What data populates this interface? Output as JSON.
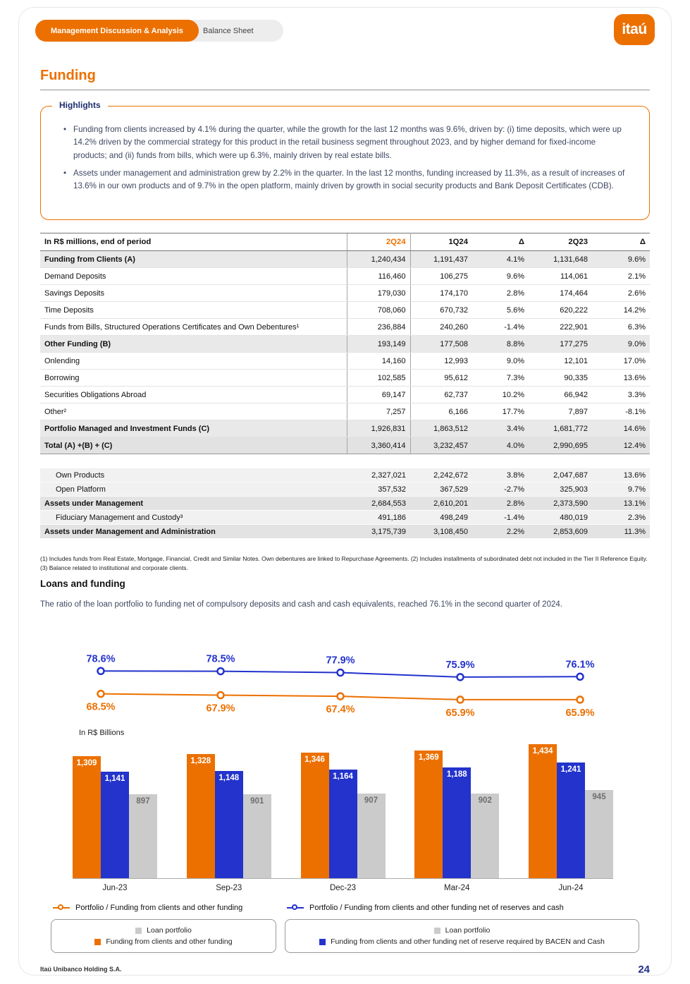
{
  "header": {
    "tab_active": "Management Discussion & Analysis",
    "tab_inactive": "Balance Sheet",
    "logo_text": "itaú"
  },
  "title": "Funding",
  "highlights": {
    "label": "Highlights",
    "bullets": [
      "Funding from clients increased by 4.1% during the quarter, while the growth for the last 12 months was 9.6%, driven by: (i) time deposits, which were up 14.2% driven by the commercial strategy for this product in the retail business segment throughout 2023, and by higher demand for fixed-income products; and (ii) funds from bills, which were up 6.3%, mainly driven by real estate bills.",
      "Assets under management and administration grew by 2.2% in the quarter. In the last 12 months, funding increased by 11.3%, as a result of increases of 13.6% in our own products and of 9.7% in the open platform, mainly driven by growth in social security products and Bank Deposit Certificates (CDB)."
    ]
  },
  "table": {
    "col_headers": [
      "In R$ millions, end of period",
      "2Q24",
      "1Q24",
      "Δ",
      "2Q23",
      "Δ"
    ],
    "rows": [
      {
        "label": "Funding from Clients (A)",
        "values": [
          "1,240,434",
          "1,191,437",
          "4.1%",
          "1,131,648",
          "9.6%"
        ],
        "style": "section"
      },
      {
        "label": "Demand Deposits",
        "values": [
          "116,460",
          "106,275",
          "9.6%",
          "114,061",
          "2.1%"
        ],
        "style": "plain"
      },
      {
        "label": "Savings Deposits",
        "values": [
          "179,030",
          "174,170",
          "2.8%",
          "174,464",
          "2.6%"
        ],
        "style": "plain"
      },
      {
        "label": "Time Deposits",
        "values": [
          "708,060",
          "670,732",
          "5.6%",
          "620,222",
          "14.2%"
        ],
        "style": "plain"
      },
      {
        "label": "Funds from Bills, Structured Operations Certificates and Own Debentures¹",
        "values": [
          "236,884",
          "240,260",
          "-1.4%",
          "222,901",
          "6.3%"
        ],
        "style": "plain"
      },
      {
        "label": "Other Funding (B)",
        "values": [
          "193,149",
          "177,508",
          "8.8%",
          "177,275",
          "9.0%"
        ],
        "style": "section"
      },
      {
        "label": "Onlending",
        "values": [
          "14,160",
          "12,993",
          "9.0%",
          "12,101",
          "17.0%"
        ],
        "style": "plain"
      },
      {
        "label": "Borrowing",
        "values": [
          "102,585",
          "95,612",
          "7.3%",
          "90,335",
          "13.6%"
        ],
        "style": "plain"
      },
      {
        "label": "Securities Obligations Abroad",
        "values": [
          "69,147",
          "62,737",
          "10.2%",
          "66,942",
          "3.3%"
        ],
        "style": "plain"
      },
      {
        "label": "Other²",
        "values": [
          "7,257",
          "6,166",
          "17.7%",
          "7,897",
          "-8.1%"
        ],
        "style": "plain"
      },
      {
        "label": "Portfolio Managed and Investment Funds (C)",
        "values": [
          "1,926,831",
          "1,863,512",
          "3.4%",
          "1,681,772",
          "14.6%"
        ],
        "style": "section"
      },
      {
        "label": "Total (A) +(B) + (C)",
        "values": [
          "3,360,414",
          "3,232,457",
          "4.0%",
          "2,990,695",
          "12.4%"
        ],
        "style": "total"
      }
    ],
    "rows2": [
      {
        "label": "Own Products",
        "values": [
          "2,327,021",
          "2,242,672",
          "3.8%",
          "2,047,687",
          "13.6%"
        ],
        "style": "sub"
      },
      {
        "label": "Open Platform",
        "values": [
          "357,532",
          "367,529",
          "-2.7%",
          "325,903",
          "9.7%"
        ],
        "style": "sub"
      },
      {
        "label": "Assets under Management",
        "values": [
          "2,684,553",
          "2,610,201",
          "2.8%",
          "2,373,590",
          "13.1%"
        ],
        "style": "section2"
      },
      {
        "label": "Fiduciary Management and Custody³",
        "values": [
          "491,186",
          "498,249",
          "-1.4%",
          "480,019",
          "2.3%"
        ],
        "style": "sub"
      },
      {
        "label": "Assets under Management and Administration",
        "values": [
          "3,175,739",
          "3,108,450",
          "2.2%",
          "2,853,609",
          "11.3%"
        ],
        "style": "section2"
      }
    ]
  },
  "footnotes": "(1) Includes funds from Real Estate, Mortgage, Financial, Credit and Similar Notes. Own debentures are linked to Repurchase Agreements. (2) Includes installments of subordinated debt not included in the Tier II Reference Equity. (3) Balance related to institutional and corporate clients.",
  "loans": {
    "heading": "Loans and funding",
    "paragraph": "The ratio of the loan portfolio to funding net of compulsory deposits and cash and cash equivalents, reached 76.1% in the second quarter of 2024."
  },
  "chart_data": [
    {
      "type": "line",
      "x": [
        "Jun-23",
        "Sep-23",
        "Dec-23",
        "Mar-24",
        "Jun-24"
      ],
      "unit": "%",
      "series": [
        {
          "name": "Portfolio / Funding from clients and other funding net of reserves and cash",
          "color": "#2333CC",
          "values": [
            78.6,
            78.5,
            77.9,
            75.9,
            76.1
          ]
        },
        {
          "name": "Portfolio / Funding from clients and other funding",
          "color": "#EC7000",
          "values": [
            68.5,
            67.9,
            67.4,
            65.9,
            65.9
          ]
        }
      ],
      "legend_position": "bottom",
      "grid": false
    },
    {
      "type": "bar",
      "unit_label": "In R$ Billions",
      "categories": [
        "Jun-23",
        "Sep-23",
        "Dec-23",
        "Mar-24",
        "Jun-24"
      ],
      "series": [
        {
          "name": "Funding from clients and other funding",
          "color": "#EC7000",
          "values": [
            1309,
            1328,
            1346,
            1369,
            1434
          ]
        },
        {
          "name": "Funding from clients and other funding net of reserve required by BACEN and Cash",
          "color": "#2333CC",
          "values": [
            1141,
            1148,
            1164,
            1188,
            1241
          ]
        },
        {
          "name": "Loan portfolio",
          "color": "#CBCBCB",
          "values": [
            897,
            901,
            907,
            902,
            945
          ]
        }
      ],
      "ylim": [
        0,
        1500
      ],
      "grid": false,
      "value_labels": "inside-top"
    }
  ],
  "legend": {
    "line_items": [
      {
        "label": "Portfolio / Funding from clients and other funding",
        "color": "#EC7000"
      },
      {
        "label": "Portfolio / Funding from clients and other funding net of reserves and cash",
        "color": "#2333CC"
      }
    ],
    "boxes": [
      {
        "items": [
          {
            "label": "Loan portfolio",
            "color": "#CBCBCB"
          },
          {
            "label": "Funding from clients and other funding",
            "color": "#EC7000"
          }
        ]
      },
      {
        "items": [
          {
            "label": "Loan portfolio",
            "color": "#CBCBCB"
          },
          {
            "label": "Funding from clients and other funding net of reserve required by BACEN and Cash",
            "color": "#2333CC"
          }
        ]
      }
    ]
  },
  "footer": {
    "company": "Itaú Unibanco Holding S.A.",
    "page": "24"
  }
}
